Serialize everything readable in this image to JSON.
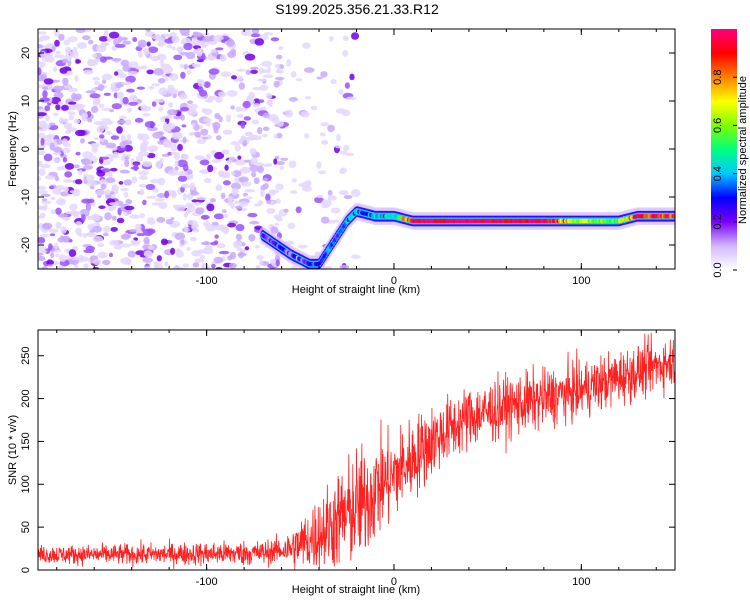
{
  "chart_data": [
    {
      "type": "heatmap",
      "title": "S199.2025.356.21.33.R12",
      "xlabel": "Height of straight line (km)",
      "ylabel": "Frequency (Hz)",
      "xlim": [
        -190,
        150
      ],
      "ylim": [
        -25,
        25
      ],
      "xticks": [
        -100,
        0,
        100
      ],
      "yticks": [
        -20,
        -10,
        0,
        10,
        20
      ],
      "xtick_labels": [
        "-100",
        "0",
        "100"
      ],
      "ytick_labels": [
        "-20",
        "-10",
        "0",
        "10",
        "20"
      ],
      "colorbar": {
        "label": "Normalized spectral amplitude",
        "range": [
          0,
          1
        ],
        "ticks": [
          0.0,
          0.2,
          0.4,
          0.6,
          0.8
        ],
        "tick_labels": [
          "0.0",
          "0.2",
          "0.4",
          "0.6",
          "0.8"
        ],
        "colors": [
          "#ffffff",
          "#d2b8ff",
          "#7a00ff",
          "#0000ff",
          "#00c8ff",
          "#00ff7f",
          "#80ff00",
          "#ffff00",
          "#ff8000",
          "#ff0000",
          "#ff0080"
        ]
      },
      "noise_region_x": [
        -190,
        -60
      ],
      "signal_trace": [
        {
          "x": -70,
          "y": -18,
          "amplitude": 0.2
        },
        {
          "x": -55,
          "y": -22,
          "amplitude": 0.2
        },
        {
          "x": -45,
          "y": -24,
          "amplitude": 0.25
        },
        {
          "x": -40,
          "y": -24,
          "amplitude": 0.25
        },
        {
          "x": -35,
          "y": -21,
          "amplitude": 0.3
        },
        {
          "x": -30,
          "y": -18,
          "amplitude": 0.3
        },
        {
          "x": -25,
          "y": -15,
          "amplitude": 0.35
        },
        {
          "x": -20,
          "y": -13,
          "amplitude": 0.35
        },
        {
          "x": -10,
          "y": -14,
          "amplitude": 0.4
        },
        {
          "x": 0,
          "y": -14,
          "amplitude": 0.4
        },
        {
          "x": 10,
          "y": -15,
          "amplitude": 1.0
        },
        {
          "x": 80,
          "y": -15,
          "amplitude": 1.0
        },
        {
          "x": 100,
          "y": -15,
          "amplitude": 0.6
        },
        {
          "x": 120,
          "y": -15,
          "amplitude": 0.6
        },
        {
          "x": 130,
          "y": -14,
          "amplitude": 0.9
        },
        {
          "x": 150,
          "y": -14,
          "amplitude": 0.9
        }
      ]
    },
    {
      "type": "line",
      "xlabel": "Height of straight line (km)",
      "ylabel": "SNR (10 * v/v)",
      "xlim": [
        -190,
        150
      ],
      "ylim": [
        0,
        280
      ],
      "xticks": [
        -100,
        0,
        100
      ],
      "yticks": [
        0,
        50,
        100,
        150,
        200,
        250
      ],
      "xtick_labels": [
        "-100",
        "0",
        "100"
      ],
      "ytick_labels": [
        "0",
        "50",
        "100",
        "150",
        "200",
        "250"
      ],
      "series": [
        {
          "name": "SNR",
          "color": "#ff2020",
          "trend": [
            {
              "x": -190,
              "y": 18
            },
            {
              "x": -150,
              "y": 18
            },
            {
              "x": -100,
              "y": 19
            },
            {
              "x": -70,
              "y": 20
            },
            {
              "x": -55,
              "y": 25
            },
            {
              "x": -45,
              "y": 35
            },
            {
              "x": -35,
              "y": 50
            },
            {
              "x": -25,
              "y": 65
            },
            {
              "x": -15,
              "y": 80
            },
            {
              "x": -10,
              "y": 95
            },
            {
              "x": 0,
              "y": 110
            },
            {
              "x": 10,
              "y": 130
            },
            {
              "x": 20,
              "y": 150
            },
            {
              "x": 30,
              "y": 165
            },
            {
              "x": 40,
              "y": 178
            },
            {
              "x": 60,
              "y": 190
            },
            {
              "x": 80,
              "y": 200
            },
            {
              "x": 100,
              "y": 210
            },
            {
              "x": 120,
              "y": 225
            },
            {
              "x": 140,
              "y": 238
            },
            {
              "x": 150,
              "y": 245
            }
          ],
          "spread": [
            {
              "x": -190,
              "y": 7
            },
            {
              "x": -60,
              "y": 10
            },
            {
              "x": -40,
              "y": 30
            },
            {
              "x": -20,
              "y": 45
            },
            {
              "x": 0,
              "y": 35
            },
            {
              "x": 30,
              "y": 25
            },
            {
              "x": 150,
              "y": 20
            }
          ]
        }
      ]
    }
  ]
}
